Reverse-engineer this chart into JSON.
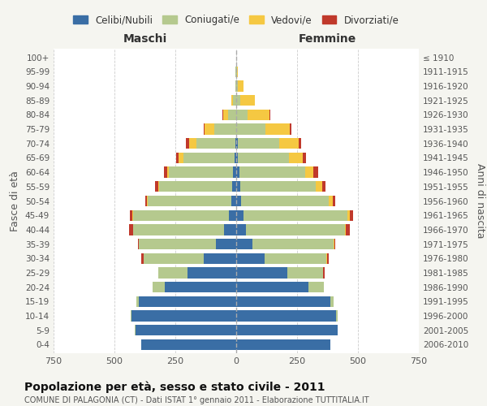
{
  "age_groups": [
    "0-4",
    "5-9",
    "10-14",
    "15-19",
    "20-24",
    "25-29",
    "30-34",
    "35-39",
    "40-44",
    "45-49",
    "50-54",
    "55-59",
    "60-64",
    "65-69",
    "70-74",
    "75-79",
    "80-84",
    "85-89",
    "90-94",
    "95-99",
    "100+"
  ],
  "birth_years": [
    "2006-2010",
    "2001-2005",
    "1996-2000",
    "1991-1995",
    "1986-1990",
    "1981-1985",
    "1976-1980",
    "1971-1975",
    "1966-1970",
    "1961-1965",
    "1956-1960",
    "1951-1955",
    "1946-1950",
    "1941-1945",
    "1936-1940",
    "1931-1935",
    "1926-1930",
    "1921-1925",
    "1916-1920",
    "1911-1915",
    "≤ 1910"
  ],
  "males_celibe": [
    390,
    415,
    430,
    400,
    295,
    200,
    135,
    85,
    50,
    30,
    20,
    18,
    12,
    8,
    5,
    0,
    0,
    0,
    0,
    0,
    0
  ],
  "males_coniugato": [
    0,
    2,
    5,
    10,
    50,
    120,
    245,
    315,
    375,
    395,
    345,
    300,
    265,
    210,
    160,
    90,
    35,
    15,
    5,
    2,
    0
  ],
  "males_vedovo": [
    0,
    0,
    0,
    0,
    0,
    0,
    0,
    0,
    0,
    2,
    2,
    2,
    5,
    20,
    30,
    40,
    20,
    5,
    0,
    0,
    0
  ],
  "males_divorziato": [
    0,
    0,
    0,
    0,
    0,
    0,
    10,
    5,
    15,
    10,
    5,
    15,
    15,
    10,
    12,
    5,
    2,
    0,
    0,
    0,
    0
  ],
  "females_nubile": [
    385,
    415,
    410,
    385,
    295,
    210,
    115,
    65,
    40,
    30,
    20,
    18,
    12,
    8,
    5,
    0,
    0,
    0,
    0,
    0,
    0
  ],
  "females_coniugata": [
    0,
    2,
    5,
    15,
    65,
    145,
    255,
    335,
    405,
    425,
    360,
    310,
    270,
    210,
    170,
    120,
    45,
    15,
    5,
    2,
    0
  ],
  "females_vedova": [
    0,
    0,
    0,
    0,
    0,
    2,
    2,
    2,
    5,
    10,
    15,
    25,
    35,
    55,
    80,
    100,
    90,
    60,
    25,
    5,
    0
  ],
  "females_divorziata": [
    0,
    0,
    0,
    0,
    0,
    5,
    8,
    5,
    15,
    15,
    10,
    15,
    20,
    12,
    10,
    8,
    5,
    2,
    0,
    0,
    0
  ],
  "colors": {
    "celibe": "#3a6ea5",
    "coniugato": "#b5c98e",
    "vedovo": "#f5c842",
    "divorziato": "#c0392b"
  },
  "xlim": 750,
  "title": "Popolazione per età, sesso e stato civile - 2011",
  "subtitle": "COMUNE DI PALAGONIA (CT) - Dati ISTAT 1° gennaio 2011 - Elaborazione TUTTITALIA.IT",
  "ylabel_left": "Fasce di età",
  "ylabel_right": "Anni di nascita",
  "xlabel_left": "Maschi",
  "xlabel_right": "Femmine",
  "legend_labels": [
    "Celibi/Nubili",
    "Coniugati/e",
    "Vedovi/e",
    "Divorziati/e"
  ],
  "bg_color": "#f5f5f0",
  "plot_bg_color": "#ffffff",
  "bar_height": 0.75
}
